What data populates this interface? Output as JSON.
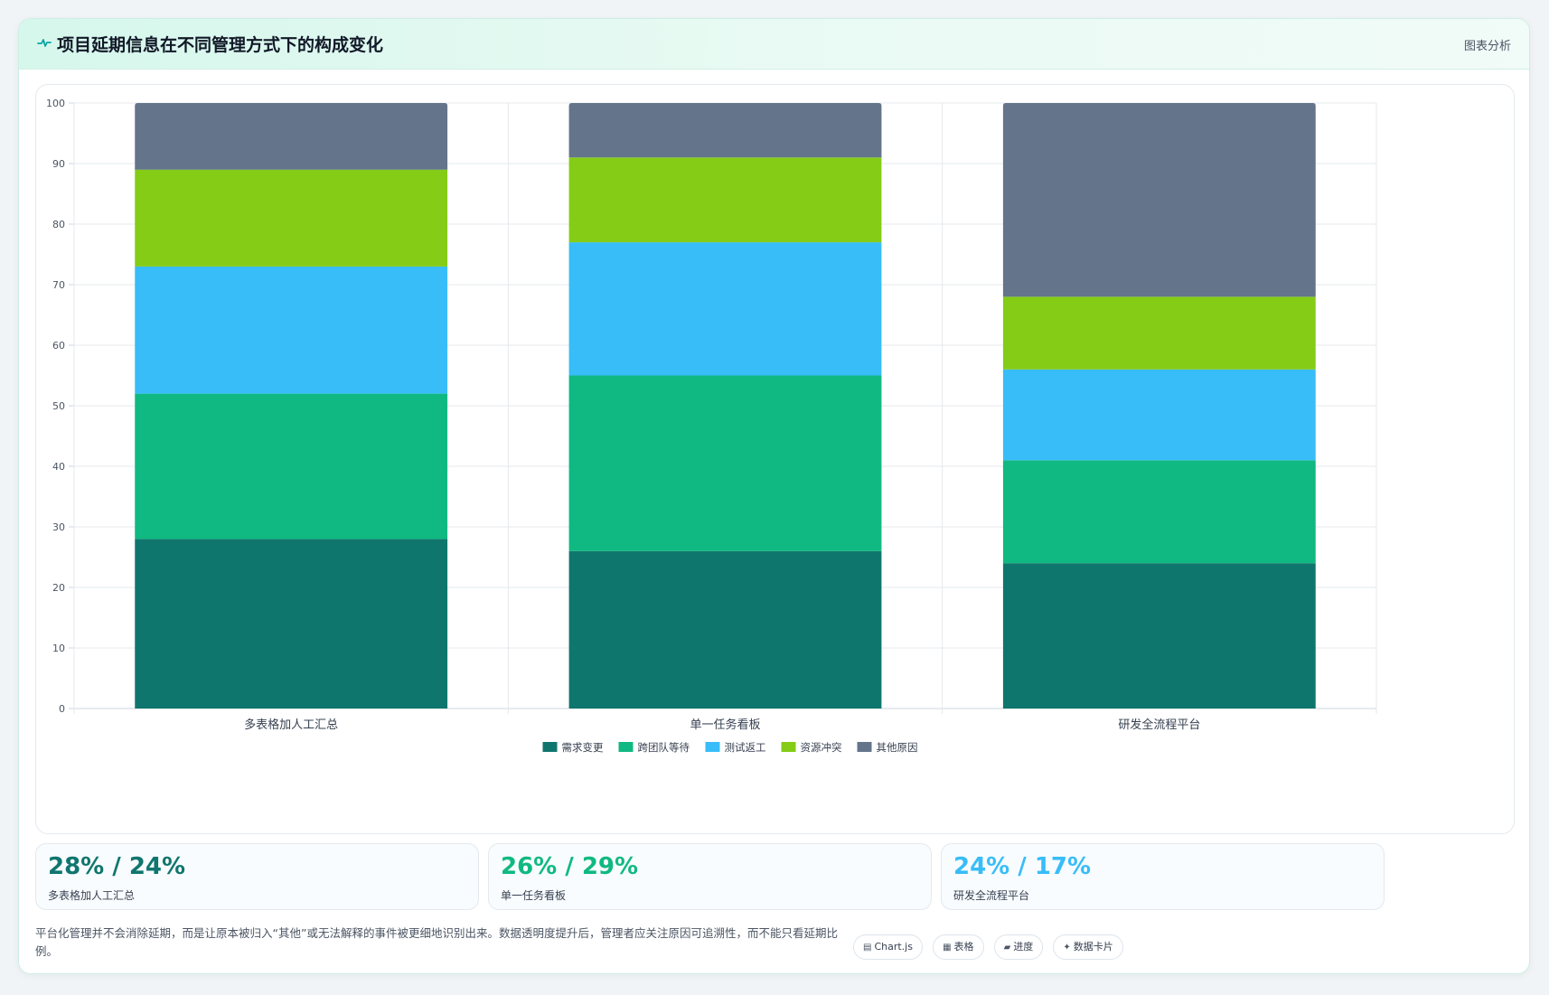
{
  "header": {
    "icon": "pulse-icon",
    "title": "项目延期信息在不同管理方式下的构成变化",
    "tag": "图表分析"
  },
  "chart_data": {
    "type": "bar",
    "stacked": true,
    "categories": [
      "多表格加人工汇总",
      "单一任务看板",
      "研发全流程平台"
    ],
    "series": [
      {
        "name": "需求变更",
        "color": "#0f766e",
        "values": [
          28,
          26,
          24
        ]
      },
      {
        "name": "跨团队等待",
        "color": "#10b981",
        "values": [
          24,
          29,
          17
        ]
      },
      {
        "name": "测试返工",
        "color": "#38bdf8",
        "values": [
          21,
          22,
          15
        ]
      },
      {
        "name": "资源冲突",
        "color": "#84cc16",
        "values": [
          16,
          14,
          12
        ]
      },
      {
        "name": "其他原因",
        "color": "#64748b",
        "values": [
          11,
          9,
          32
        ]
      }
    ],
    "ylim": [
      0,
      100
    ],
    "yticks": [
      0,
      10,
      20,
      30,
      40,
      50,
      60,
      70,
      80,
      90,
      100
    ],
    "grid": true,
    "legend": "bottom-center"
  },
  "stats": [
    {
      "value": "28% / 24%",
      "label": "多表格加人工汇总",
      "color": "#0f766e"
    },
    {
      "value": "26% / 29%",
      "label": "单一任务看板",
      "color": "#10b981"
    },
    {
      "value": "24% / 17%",
      "label": "研发全流程平台",
      "color": "#38bdf8"
    }
  ],
  "note": "平台化管理并不会消除延期，而是让原本被归入“其他”或无法解释的事件被更细地识别出来。数据透明度提升后，管理者应关注原因可追溯性，而不能只看延期比例。",
  "chips": [
    {
      "icon": "chart-icon",
      "label": "Chart.js"
    },
    {
      "icon": "table-icon",
      "label": "表格"
    },
    {
      "icon": "progress-icon",
      "label": "进度"
    },
    {
      "icon": "sparkle-icon",
      "label": "数据卡片"
    }
  ]
}
